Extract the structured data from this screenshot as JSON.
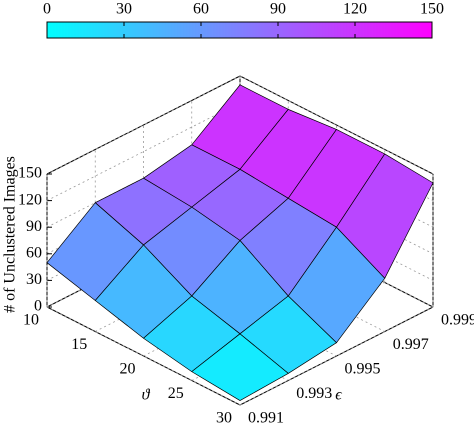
{
  "chart_data": {
    "type": "surface",
    "x_label": "ϑ",
    "y_label": "ϵ",
    "z_label": "# of Unclustered Images",
    "x": [
      10,
      15,
      20,
      25,
      30
    ],
    "y": [
      0.991,
      0.993,
      0.995,
      0.997,
      0.999
    ],
    "z": [
      [
        50,
        90,
        90,
        100,
        140
      ],
      [
        35,
        70,
        85,
        100,
        140
      ],
      [
        20,
        40,
        75,
        95,
        145
      ],
      [
        10,
        25,
        40,
        90,
        145
      ],
      [
        5,
        8,
        15,
        60,
        140
      ]
    ],
    "xlim": [
      10,
      30
    ],
    "xticks": [
      10,
      15,
      20,
      25,
      30
    ],
    "ylim": [
      0.991,
      0.999
    ],
    "yticks": [
      0.991,
      0.993,
      0.995,
      0.997,
      0.999
    ],
    "zlim": [
      0,
      150
    ],
    "zticks": [
      0,
      30,
      60,
      90,
      120,
      150
    ],
    "colormap": [
      "#00ffff",
      "#ff00ff"
    ],
    "colorbar": {
      "range": [
        0,
        150
      ],
      "ticks": [
        0,
        30,
        60,
        90,
        120,
        150
      ]
    },
    "grid": true
  }
}
